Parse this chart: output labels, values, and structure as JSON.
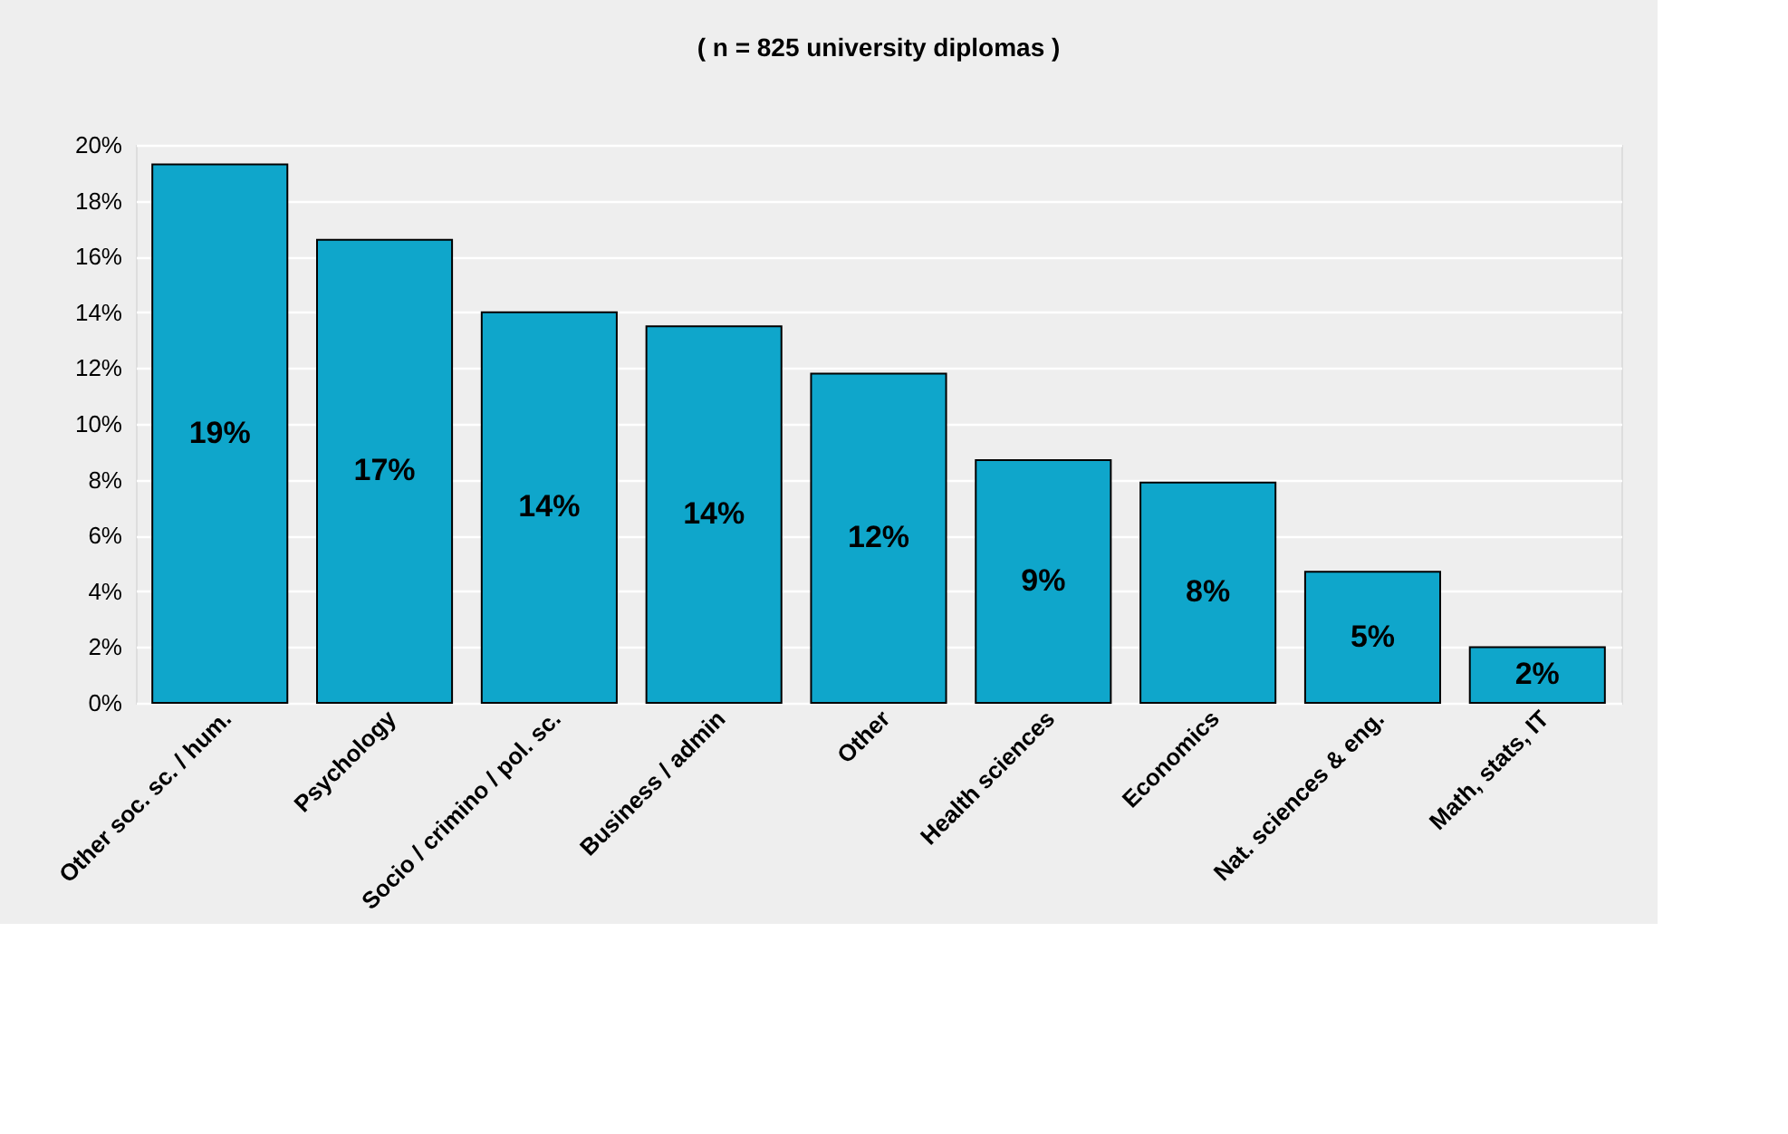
{
  "chart_data": {
    "type": "bar",
    "title": "( n = 825 university diplomas )",
    "categories": [
      "Other soc. sc. / hum.",
      "Psychology",
      "Socio / crimino / pol. sc.",
      "Business / admin",
      "Other",
      "Health sciences",
      "Economics",
      "Nat. sciences & eng.",
      "Math, stats, IT"
    ],
    "values": [
      19.3,
      16.6,
      14.0,
      13.5,
      11.8,
      8.7,
      7.9,
      4.7,
      2.0
    ],
    "value_labels": [
      "19%",
      "17%",
      "14%",
      "14%",
      "12%",
      "9%",
      "8%",
      "5%",
      "2%"
    ],
    "color": "#0fa6cb",
    "ylim": [
      0,
      20
    ],
    "yticks": [
      {
        "value": 0,
        "label": "0%"
      },
      {
        "value": 2,
        "label": "2%"
      },
      {
        "value": 4,
        "label": "4%"
      },
      {
        "value": 6,
        "label": "6%"
      },
      {
        "value": 8,
        "label": "8%"
      },
      {
        "value": 10,
        "label": "10%"
      },
      {
        "value": 12,
        "label": "12%"
      },
      {
        "value": 14,
        "label": "14%"
      },
      {
        "value": 16,
        "label": "16%"
      },
      {
        "value": 18,
        "label": "18%"
      },
      {
        "value": 20,
        "label": "20%"
      }
    ],
    "grid": "y"
  }
}
